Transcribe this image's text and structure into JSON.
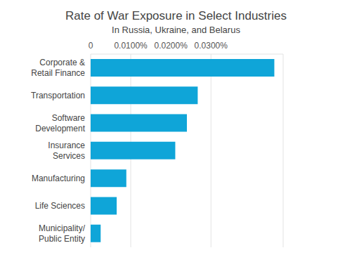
{
  "chart_data": {
    "type": "bar",
    "orientation": "horizontal",
    "title": "Rate of War Exposure in Select Industries",
    "subtitle": "In Russia, Ukraine, and Belarus",
    "categories": [
      "Corporate & Retail Finance",
      "Transportation",
      "Software Development",
      "Insurance Services",
      "Manufacturing",
      "Life Sciences",
      "Municipality/ Public Entity"
    ],
    "values": [
      0.0458,
      0.0267,
      0.024,
      0.0211,
      0.0089,
      0.0065,
      0.0025
    ],
    "color": "#0fa5d8",
    "xlim": [
      0,
      0.048
    ],
    "xticks": [
      0,
      {
        "value": 0.01,
        "label": "0.0100%"
      },
      {
        "value": 0.02,
        "label": "0.0200%"
      },
      {
        "value": 0.03,
        "label": "0.0300%"
      }
    ],
    "grid": true
  }
}
